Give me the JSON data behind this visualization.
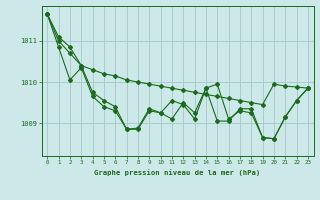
{
  "background_color": "#cce8e8",
  "grid_color": "#aacccc",
  "line_color": "#1a6b1a",
  "marker_color": "#1a6b1a",
  "xlabel": "Graphe pression niveau de la mer (hPa)",
  "xlim": [
    -0.5,
    23.5
  ],
  "ylim": [
    1008.2,
    1011.85
  ],
  "xticks": [
    0,
    1,
    2,
    3,
    4,
    5,
    6,
    7,
    8,
    9,
    10,
    11,
    12,
    13,
    14,
    15,
    16,
    17,
    18,
    19,
    20,
    21,
    22,
    23
  ],
  "yticks": [
    1009,
    1010,
    1011
  ],
  "series1": [
    1011.65,
    1011.1,
    1010.85,
    1010.4,
    1010.3,
    1010.2,
    1010.15,
    1010.05,
    1010.0,
    1009.95,
    1009.9,
    1009.85,
    1009.8,
    1009.75,
    1009.7,
    1009.65,
    1009.6,
    1009.55,
    1009.5,
    1009.45,
    1009.95,
    1009.9,
    1009.88,
    1009.85
  ],
  "series2": [
    1011.65,
    1011.0,
    1010.7,
    1010.4,
    1009.75,
    1009.55,
    1009.4,
    1008.85,
    1008.88,
    1009.35,
    1009.25,
    1009.55,
    1009.45,
    1009.1,
    1009.85,
    1009.95,
    1009.1,
    1009.3,
    1009.25,
    1008.65,
    1008.62,
    1009.15,
    1009.55,
    1009.85
  ],
  "series3": [
    1011.65,
    1010.85,
    1010.05,
    1010.35,
    1009.65,
    1009.4,
    1009.3,
    1008.85,
    1008.85,
    1009.3,
    1009.25,
    1009.1,
    1009.5,
    1009.25,
    1009.85,
    1009.05,
    1009.05,
    1009.35,
    1009.35,
    1008.65,
    1008.62,
    1009.15,
    1009.55,
    1009.85
  ]
}
